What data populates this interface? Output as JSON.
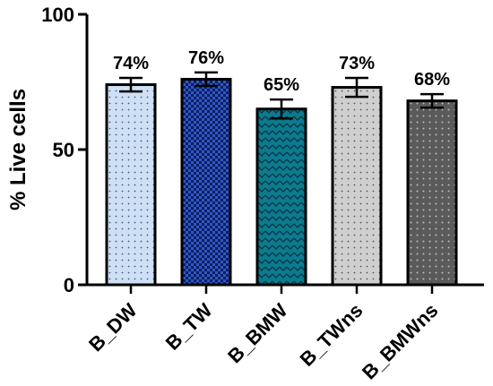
{
  "chart_data": {
    "type": "bar",
    "title": "",
    "xlabel": "",
    "ylabel": "% Live cells",
    "ylim": [
      0,
      100
    ],
    "yticks": [
      0,
      50,
      100
    ],
    "grid": false,
    "categories": [
      "B_DW",
      "B_TW",
      "B_BMW",
      "B_TWns",
      "B_BMWns"
    ],
    "values": [
      74,
      76,
      65,
      73,
      68
    ],
    "errors": [
      2.5,
      2.5,
      3.5,
      3.5,
      2.5
    ],
    "data_labels": [
      "74%",
      "76%",
      "65%",
      "73%",
      "68%"
    ],
    "fills": [
      "#cfe0f5",
      "#2f57c8",
      "#0d7a8f",
      "#cfcfcf",
      "#5a5a5a"
    ],
    "patterns": [
      "dots",
      "checker",
      "chevron",
      "dots",
      "dots"
    ]
  }
}
